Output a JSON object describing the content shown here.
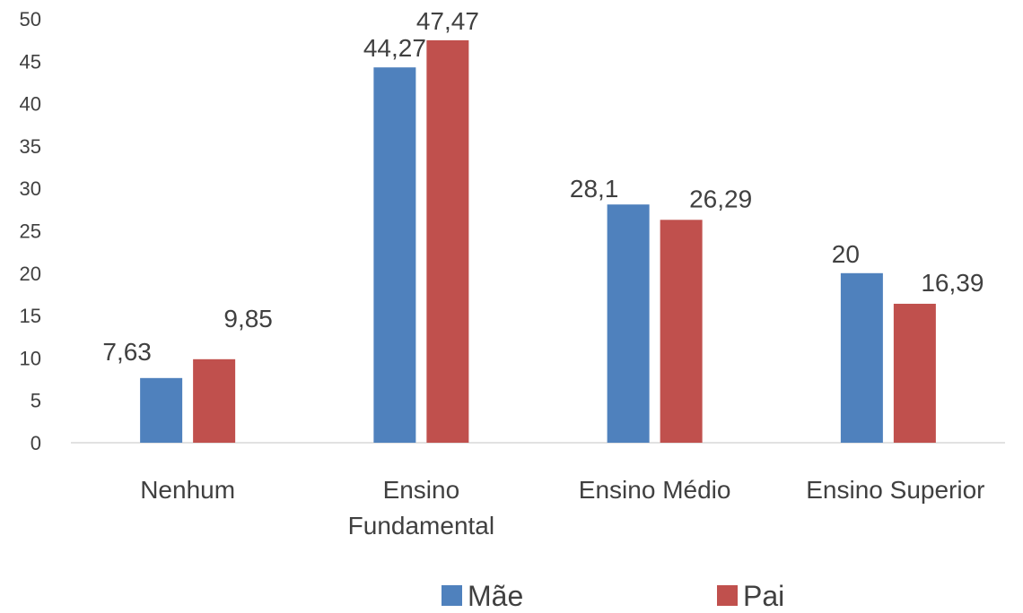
{
  "chart_data": {
    "type": "bar",
    "categories": [
      [
        "Nenhum"
      ],
      [
        "Ensino",
        "Fundamental"
      ],
      [
        "Ensino Médio"
      ],
      [
        "Ensino Superior"
      ]
    ],
    "series": [
      {
        "name": "Mãe",
        "color": "#4F81BD",
        "values": [
          7.63,
          44.27,
          28.1,
          20
        ]
      },
      {
        "name": "Pai",
        "color": "#C0504D",
        "values": [
          9.85,
          47.47,
          26.29,
          16.39
        ]
      }
    ],
    "value_labels": [
      [
        "7,63",
        "44,27",
        "28,1",
        "20"
      ],
      [
        "9,85",
        "47,47",
        "26,29",
        "16,39"
      ]
    ],
    "ylim": [
      0,
      50
    ],
    "yticks": [
      0,
      5,
      10,
      15,
      20,
      25,
      30,
      35,
      40,
      45,
      50
    ],
    "grid": false,
    "legend": "bottom"
  }
}
